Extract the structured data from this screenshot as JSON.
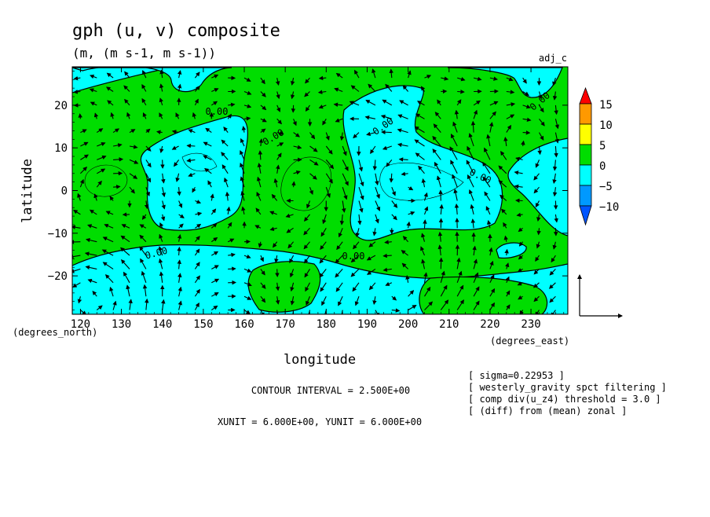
{
  "chart_data": {
    "type": "heatmap",
    "title": "gph (u, v) composite",
    "subtitle": "(m, (m s-1, m s-1))",
    "tag": "adj_c",
    "xlabel": "longitude",
    "ylabel": "latitude",
    "x_unit_label": "(degrees_east)",
    "y_unit_label": "(degrees_north)",
    "xlim": [
      118,
      239
    ],
    "ylim": [
      -29,
      29
    ],
    "x_ticks": [
      "120",
      "130",
      "140",
      "150",
      "160",
      "170",
      "180",
      "190",
      "200",
      "210",
      "220",
      "230"
    ],
    "y_ticks": [
      "20",
      "10",
      "0",
      "−10",
      "−20"
    ],
    "contour_labels": [
      "0.00",
      "0.00",
      "0.00",
      "0.00",
      "0.00",
      "0.00",
      "0.00"
    ],
    "colorbar": {
      "ticks": [
        "15",
        "10",
        "5",
        "0",
        "−5",
        "−10"
      ],
      "bins": [
        {
          "range": [
            10,
            15
          ],
          "color": "#ff9900"
        },
        {
          "range": [
            5,
            10
          ],
          "color": "#ffff00"
        },
        {
          "range": [
            0,
            5
          ],
          "color": "#00dd00"
        },
        {
          "range": [
            -5,
            0
          ],
          "color": "#00ffff"
        },
        {
          "range": [
            -10,
            -5
          ],
          "color": "#0099ff"
        }
      ],
      "over_color": "#ff0000",
      "under_color": "#0055ff"
    },
    "series": [
      {
        "name": "gph",
        "centers": [
          {
            "lon": 150,
            "lat": 3,
            "sign": -1
          },
          {
            "lon": 203,
            "lat": 3,
            "sign": -1
          },
          {
            "lon": 128,
            "lat": 2,
            "sign": 1
          },
          {
            "lon": 176,
            "lat": 2,
            "sign": 1
          },
          {
            "lon": 229,
            "lat": 10,
            "sign": 1
          },
          {
            "lon": 123,
            "lat": -23,
            "sign": -1
          },
          {
            "lon": 200,
            "lat": -23,
            "sign": -1
          },
          {
            "lon": 200,
            "lat": 26,
            "sign": 1
          }
        ]
      }
    ]
  },
  "footer": {
    "contour_interval": "CONTOUR INTERVAL = 2.500E+00",
    "units": "XUNIT = 6.000E+00, YUNIT = 6.000E+00"
  },
  "notes": [
    "[ sigma=0.22953 ]",
    "[ westerly_gravity spct filtering ]",
    "[ comp div(u_z4) threshold = 3.0 ]",
    "[ (diff) from (mean) zonal ]"
  ]
}
